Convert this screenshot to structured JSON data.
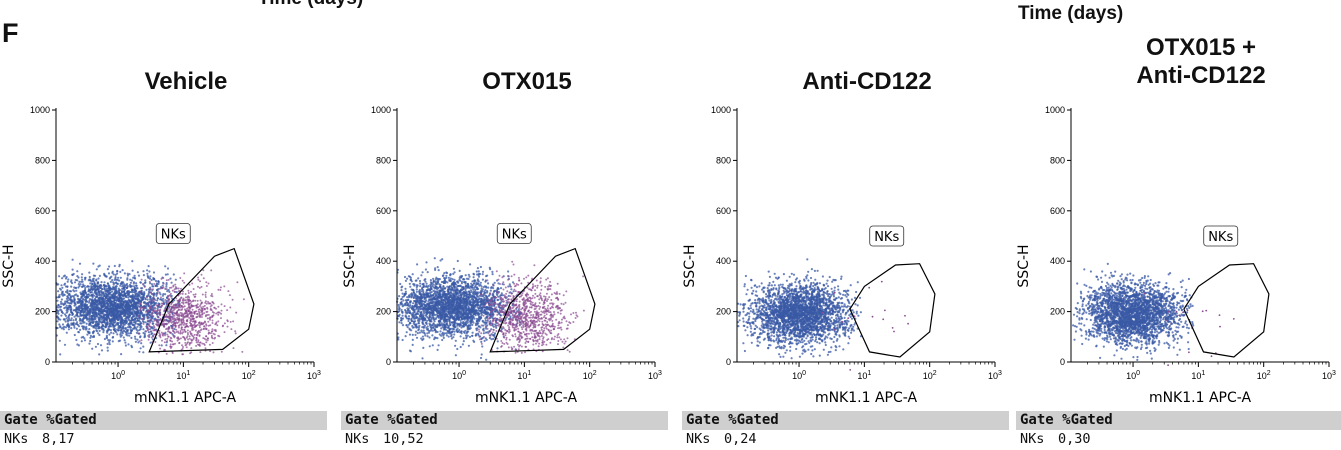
{
  "fragments": {
    "top_left": "Time (days)",
    "top_right": "Time (days)"
  },
  "panel_letter": "F",
  "table_header": "Gate %Gated",
  "colors": {
    "population": "#3a5aa6",
    "nk_population": "#8a4a92",
    "gate": "#000000",
    "gate_bar": "#cfcfcf"
  },
  "chart_data": [
    {
      "type": "scatter",
      "title": [
        "Vehicle"
      ],
      "xlabel": "mNK1.1 APC-A",
      "ylabel": "SSC-H",
      "x_scale": "log",
      "x_ticks": [
        "10^0",
        "10^1",
        "10^2",
        "10^3"
      ],
      "y_ticks": [
        "0",
        "200",
        "400",
        "600",
        "800",
        "1000"
      ],
      "ylim": [
        0,
        1000
      ],
      "gate": {
        "label": "NKs",
        "pct_gated": "8,17",
        "polygon": [
          [
            3,
            40
          ],
          [
            6,
            230
          ],
          [
            30,
            420
          ],
          [
            60,
            450
          ],
          [
            120,
            230
          ],
          [
            100,
            130
          ],
          [
            40,
            50
          ]
        ]
      },
      "table_rows": [
        {
          "gate": "NKs",
          "pct": "8,17"
        }
      ]
    },
    {
      "type": "scatter",
      "title": [
        "OTX015"
      ],
      "xlabel": "mNK1.1 APC-A",
      "ylabel": "SSC-H",
      "x_scale": "log",
      "x_ticks": [
        "10^0",
        "10^1",
        "10^2",
        "10^3"
      ],
      "y_ticks": [
        "0",
        "200",
        "400",
        "600",
        "800",
        "1000"
      ],
      "ylim": [
        0,
        1000
      ],
      "gate": {
        "label": "NKs",
        "pct_gated": "10,52",
        "polygon": [
          [
            3,
            40
          ],
          [
            6,
            230
          ],
          [
            30,
            420
          ],
          [
            60,
            450
          ],
          [
            120,
            230
          ],
          [
            100,
            130
          ],
          [
            40,
            50
          ]
        ]
      },
      "table_rows": [
        {
          "gate": "NKs",
          "pct": "10,52"
        }
      ]
    },
    {
      "type": "scatter",
      "title": [
        "Anti-CD122"
      ],
      "xlabel": "mNK1.1 APC-A",
      "ylabel": "SSC-H",
      "x_scale": "log",
      "x_ticks": [
        "10^0",
        "10^1",
        "10^2",
        "10^3"
      ],
      "y_ticks": [
        "0",
        "200",
        "400",
        "600",
        "800",
        "1000"
      ],
      "ylim": [
        0,
        1000
      ],
      "gate": {
        "label": "NKs",
        "pct_gated": "0,24",
        "polygon": [
          [
            6,
            210
          ],
          [
            10,
            300
          ],
          [
            30,
            385
          ],
          [
            70,
            390
          ],
          [
            120,
            270
          ],
          [
            100,
            120
          ],
          [
            35,
            20
          ],
          [
            12,
            40
          ]
        ]
      },
      "table_rows": [
        {
          "gate": "NKs",
          "pct": "0,24"
        }
      ]
    },
    {
      "type": "scatter",
      "title": [
        "OTX015 +",
        "Anti-CD122"
      ],
      "xlabel": "mNK1.1 APC-A",
      "ylabel": "SSC-H",
      "x_scale": "log",
      "x_ticks": [
        "10^0",
        "10^1",
        "10^2",
        "10^3"
      ],
      "y_ticks": [
        "0",
        "200",
        "400",
        "600",
        "800",
        "1000"
      ],
      "ylim": [
        0,
        1000
      ],
      "gate": {
        "label": "NKs",
        "pct_gated": "0,30",
        "polygon": [
          [
            6,
            210
          ],
          [
            10,
            300
          ],
          [
            30,
            385
          ],
          [
            70,
            390
          ],
          [
            120,
            270
          ],
          [
            100,
            120
          ],
          [
            35,
            20
          ],
          [
            12,
            40
          ]
        ]
      },
      "table_rows": [
        {
          "gate": "NKs",
          "pct": "0,30"
        }
      ]
    }
  ]
}
